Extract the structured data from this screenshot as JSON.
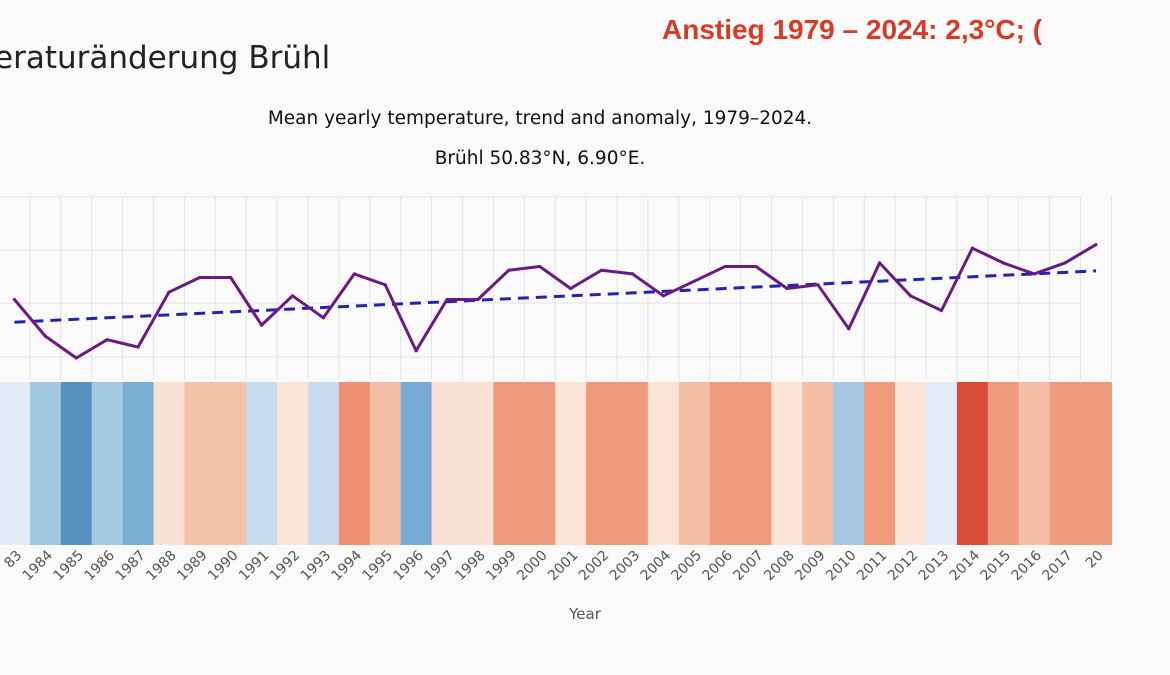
{
  "page_title": "eraturänderung Brühl",
  "headline": "Anstieg 1979 – 2024: 2,3°C; (",
  "chart_data": {
    "type": "line",
    "title": "Mean yearly temperature, trend and anomaly, 1979–2024.",
    "subtitle": "Brühl 50.83°N, 6.90°E.",
    "xlabel": "Year",
    "categories": [
      "83",
      "1984",
      "1985",
      "1986",
      "1987",
      "1988",
      "1989",
      "1990",
      "1991",
      "1992",
      "1993",
      "1994",
      "1995",
      "1996",
      "1997",
      "1998",
      "1999",
      "2000",
      "2001",
      "2002",
      "2003",
      "2004",
      "2005",
      "2006",
      "2007",
      "2008",
      "2009",
      "2010",
      "2011",
      "2012",
      "2013",
      "2014",
      "2015",
      "2016",
      "2017",
      "20"
    ],
    "series": [
      {
        "values": [
          10.0,
          9.5,
          9.2,
          9.45,
          9.35,
          10.1,
          10.3,
          10.3,
          9.65,
          10.05,
          9.75,
          10.35,
          10.2,
          9.3,
          10.0,
          10.0,
          10.4,
          10.45,
          10.15,
          10.4,
          10.35,
          10.05,
          10.25,
          10.45,
          10.45,
          10.15,
          10.2,
          9.6,
          10.5,
          10.05,
          9.85,
          10.7,
          10.5,
          10.35,
          10.5,
          10.75
        ]
      },
      {
        "values": [
          9.69,
          9.71,
          9.73,
          9.75,
          9.77,
          9.79,
          9.81,
          9.83,
          9.85,
          9.87,
          9.89,
          9.91,
          9.93,
          9.95,
          9.97,
          9.99,
          10.01,
          10.03,
          10.05,
          10.07,
          10.09,
          10.11,
          10.13,
          10.15,
          10.17,
          10.19,
          10.21,
          10.23,
          10.25,
          10.27,
          10.29,
          10.31,
          10.33,
          10.35,
          10.37,
          10.39
        ]
      }
    ],
    "stripe_colors": [
      "#e3ecf6",
      "#a2c7e0",
      "#5892bf",
      "#a5c9e1",
      "#79aed3",
      "#fbe1d4",
      "#f4c2a9",
      "#f4c2a9",
      "#c7dcef",
      "#fbe5d8",
      "#c9dcef",
      "#ef9072",
      "#f4bfa4",
      "#78abd3",
      "#fbe1d5",
      "#fbe1d5",
      "#ef9a7b",
      "#ef9a7b",
      "#fbe3d6",
      "#ef9a7b",
      "#ef9a7b",
      "#fbe3d6",
      "#f4bfa4",
      "#ef9b7c",
      "#ef9b7c",
      "#fbe3d6",
      "#f4bfa4",
      "#a4c8e1",
      "#ef9b7c",
      "#fbe3d6",
      "#e4ecf7",
      "#d94c37",
      "#ef9a7c",
      "#f4bfa5",
      "#ef9a7c",
      "#ef9a7c"
    ],
    "colors": {
      "line": "#6b1a82",
      "trend": "#2323b2",
      "grid": "#e3e3e3",
      "tick": "#555555"
    },
    "ylim": [
      8.9,
      11.4
    ],
    "grid": true
  }
}
